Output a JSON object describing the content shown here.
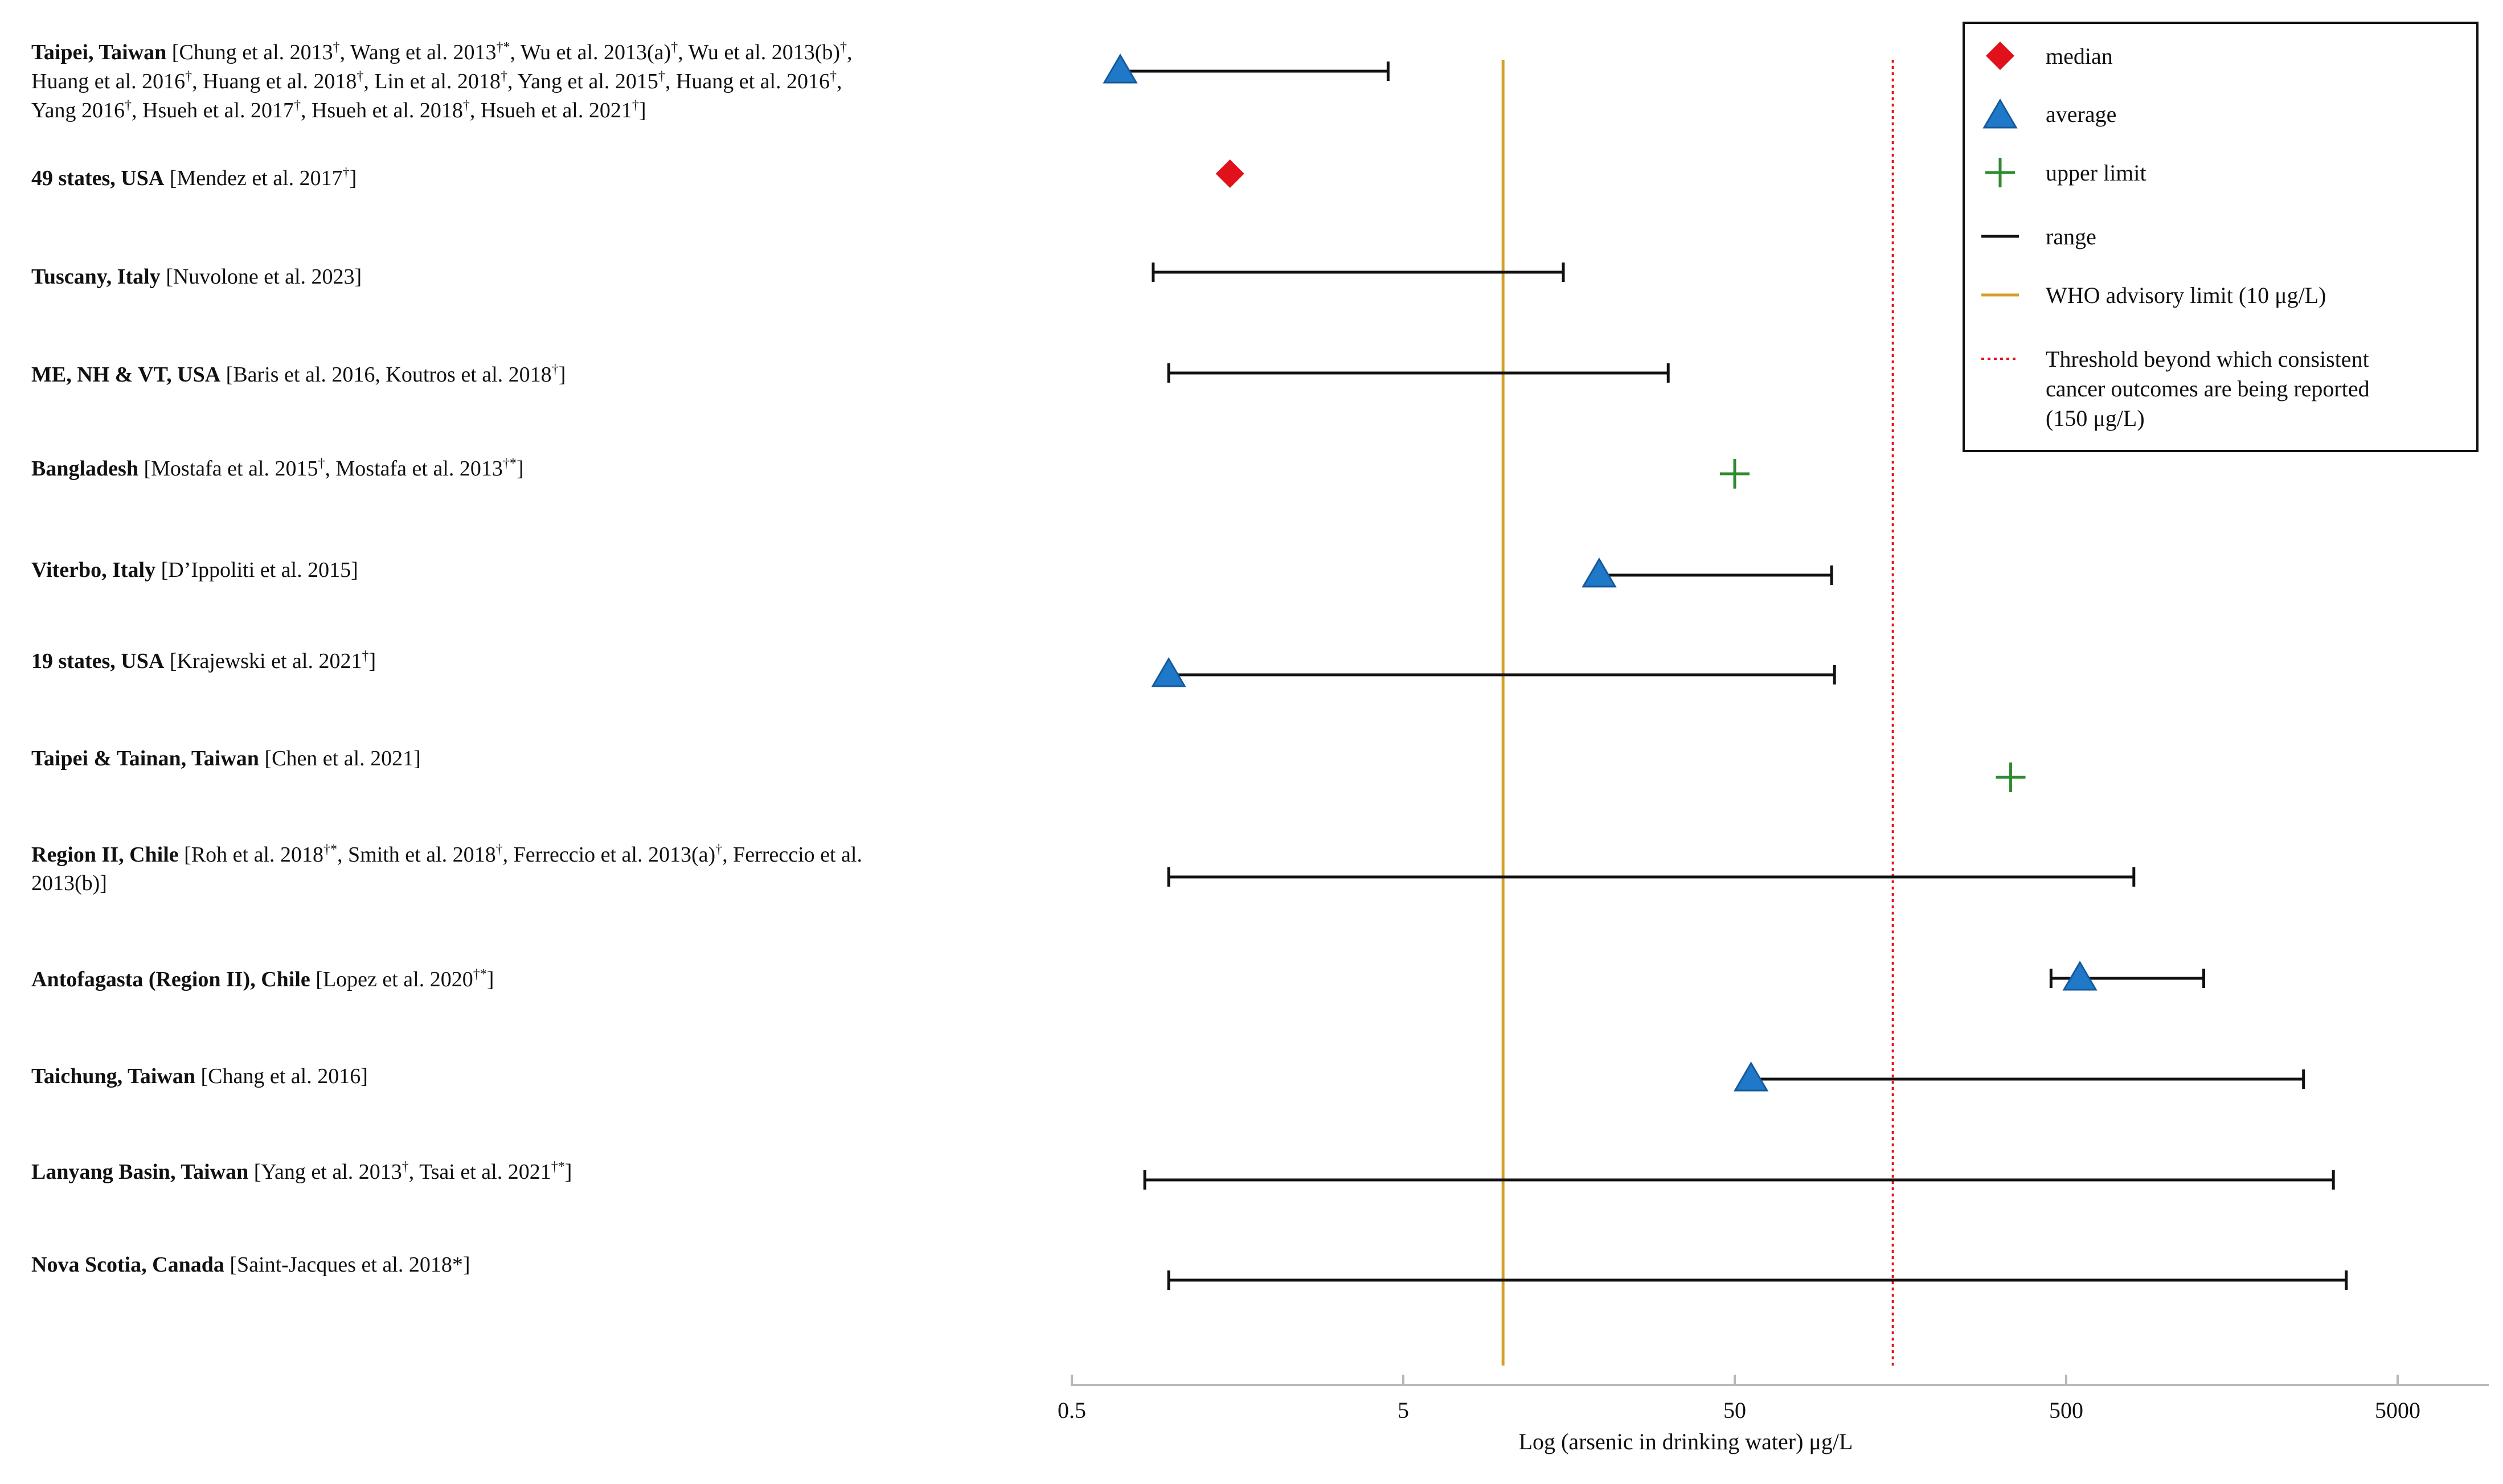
{
  "chart_data": {
    "type": "scatter",
    "xscale": "log",
    "xlabel": "Log (arsenic in drinking water) μg/L",
    "xlim": [
      0.5,
      12000
    ],
    "xticks": [
      {
        "value": 0.5,
        "label": "0.5"
      },
      {
        "value": 5,
        "label": "5"
      },
      {
        "value": 50,
        "label": "50"
      },
      {
        "value": 500,
        "label": "500"
      },
      {
        "value": 5000,
        "label": "5000"
      }
    ],
    "reference_lines": [
      {
        "name": "WHO advisory limit (10 μg/L)",
        "value": 10,
        "color": "#D4A02A",
        "style": "solid"
      },
      {
        "name": "Threshold beyond which consistent cancer outcomes are being reported (150 μg/L)",
        "value": 150,
        "color": "#E8141B",
        "style": "dotted"
      }
    ],
    "legend": {
      "placement": "top-right",
      "entries": [
        {
          "key": "median",
          "label": "median",
          "color": "#E0111B"
        },
        {
          "key": "average",
          "label": "average",
          "color": "#1F78C8"
        },
        {
          "key": "upper",
          "label": "upper limit",
          "color": "#2E8B2E"
        },
        {
          "key": "range",
          "label": "range",
          "color": "#111111"
        },
        {
          "key": "who",
          "label": "WHO advisory limit (10 μg/L)",
          "color": "#D4A02A"
        },
        {
          "key": "threshold",
          "label": "Threshold beyond which consistent cancer outcomes are being reported (150 μg/L)",
          "label_lines": [
            "Threshold beyond which consistent",
            "cancer outcomes are being reported",
            "(150 μg/L)"
          ],
          "color": "#E8141B"
        }
      ]
    },
    "rows": [
      {
        "location": "Taipei, Taiwan",
        "refs": [
          [
            "Chung et al. 2013",
            "†",
            ", Wang et al. 2013",
            "†*",
            ", Wu et al. 2013(a)",
            "†",
            ", Wu et al. 2013(b)",
            "†",
            ","
          ],
          [
            "Huang et al. 2016",
            "†",
            ", Huang et al. 2018",
            "†",
            ", Lin et al. 2018",
            "†",
            ", Yang et al. 2015",
            "†",
            ", Huang et al. 2016",
            "†",
            ","
          ],
          [
            "Yang 2016",
            "†",
            ", Hsueh et al. 2017",
            "†",
            ", Hsueh et al. 2018",
            "†",
            ", Hsueh et al. 2021",
            "†",
            "]"
          ]
        ],
        "range": [
          0.7,
          4.5
        ],
        "average": 0.7
      },
      {
        "location": "49 states, USA",
        "refs": [
          [
            "Mendez et al. 2017",
            "†",
            "]"
          ]
        ],
        "median": 1.5
      },
      {
        "location": "Tuscany, Italy",
        "refs": [
          [
            "Nuvolone et al. 2023]"
          ]
        ],
        "range": [
          0.88,
          15.2
        ]
      },
      {
        "location": "ME, NH & VT, USA",
        "refs": [
          [
            "Baris et al. 2016, Koutros et al. 2018",
            "†",
            "]"
          ]
        ],
        "range": [
          0.98,
          31.5
        ]
      },
      {
        "location": "Bangladesh",
        "refs": [
          [
            "Mostafa et al. 2015",
            "†",
            ", Mostafa et al. 2013",
            "†*",
            "]"
          ]
        ],
        "upper": 50
      },
      {
        "location": "Viterbo, Italy",
        "refs": [
          [
            "D’Ippoliti et al. 2015]"
          ]
        ],
        "range": [
          19.5,
          98
        ],
        "average": 19.5
      },
      {
        "location": "19 states, USA",
        "refs": [
          [
            "Krajewski et al. 2021",
            "†",
            "]"
          ]
        ],
        "range": [
          0.98,
          100
        ],
        "average": 0.98
      },
      {
        "location": "Taipei & Tainan, Taiwan",
        "refs": [
          [
            "Chen et al. 2021]"
          ]
        ],
        "upper": 340
      },
      {
        "location": "Region II, Chile",
        "refs": [
          [
            "Roh et al. 2018",
            "†*",
            ", Smith et al. 2018",
            "†",
            ", Ferreccio et al. 2013(a)",
            "†",
            ", Ferreccio et al."
          ],
          [
            "2013(b)]"
          ]
        ],
        "range": [
          0.98,
          800
        ]
      },
      {
        "location": "Antofagasta (Region II), Chile",
        "refs": [
          [
            "Lopez et al. 2020",
            "†*",
            "]"
          ]
        ],
        "range": [
          450,
          1300
        ],
        "average": 550
      },
      {
        "location": "Taichung, Taiwan",
        "refs": [
          [
            "Chang et al. 2016]"
          ]
        ],
        "range": [
          56,
          2600
        ],
        "average": 56
      },
      {
        "location": "Lanyang Basin, Taiwan",
        "refs": [
          [
            "Yang et al. 2013",
            "†",
            ", Tsai et al. 2021",
            "†*",
            "]"
          ]
        ],
        "range": [
          0.83,
          3200
        ]
      },
      {
        "location": "Nova Scotia, Canada",
        "refs": [
          [
            "Saint-Jacques et al. 2018*]"
          ]
        ],
        "range": [
          0.98,
          3500
        ]
      }
    ]
  }
}
